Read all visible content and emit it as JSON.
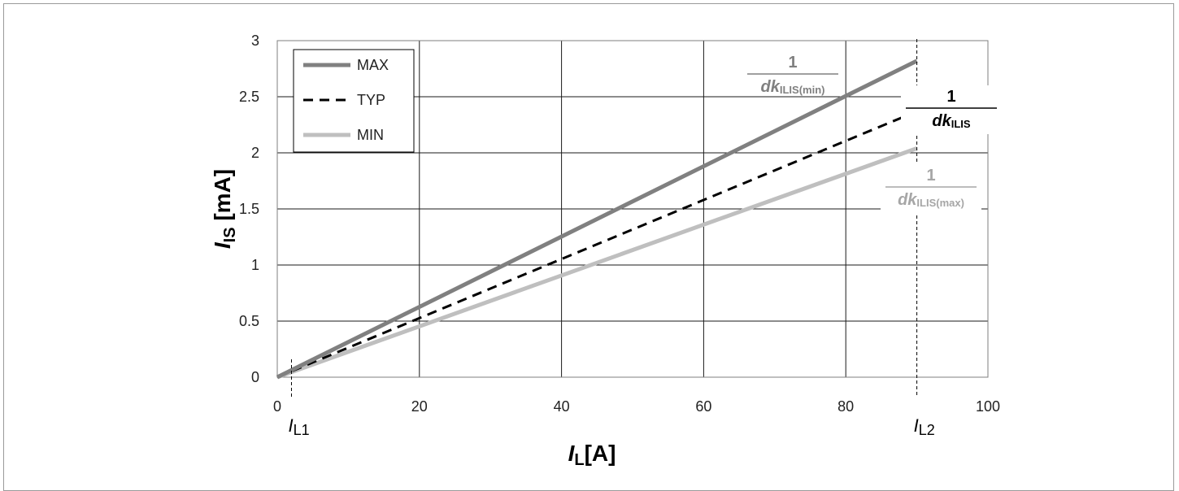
{
  "chart_data": {
    "type": "line",
    "x": [
      0,
      90
    ],
    "series": [
      {
        "name": "MAX",
        "values": [
          0,
          2.82
        ],
        "color": "#808080",
        "style": "solid"
      },
      {
        "name": "TYP",
        "values": [
          0,
          2.37
        ],
        "color": "#000000",
        "style": "dashed"
      },
      {
        "name": "MIN",
        "values": [
          0,
          2.04
        ],
        "color": "#bfbfbf",
        "style": "solid"
      }
    ],
    "xlabel": {
      "main": "I",
      "sub": "L",
      "suffix": "[A]"
    },
    "ylabel": {
      "main": "I",
      "sub": "IS",
      "suffix": "[mA]"
    },
    "xlim": [
      0,
      100
    ],
    "ylim": [
      0,
      3
    ],
    "xticks": [
      "0",
      "20",
      "40",
      "60",
      "80",
      "100"
    ],
    "yticks": [
      "0",
      "0.5",
      "1",
      "1.5",
      "2",
      "2.5",
      "3"
    ],
    "grid": true,
    "legend_position": "top-left",
    "markers": [
      {
        "x": 2,
        "label_main": "I",
        "label_sub": "L1"
      },
      {
        "x": 90,
        "label_main": "I",
        "label_sub": "L2"
      }
    ],
    "annotations": [
      {
        "series": "MAX",
        "numerator": "1",
        "denominator_main": "dk",
        "denominator_sub": "ILIS(min)",
        "color": "#808080"
      },
      {
        "series": "TYP",
        "numerator": "1",
        "denominator_main": "dk",
        "denominator_sub": "ILIS",
        "color": "#000000"
      },
      {
        "series": "MIN",
        "numerator": "1",
        "denominator_main": "dk",
        "denominator_sub": "ILIS(max)",
        "color": "#a6a6a6"
      }
    ]
  }
}
